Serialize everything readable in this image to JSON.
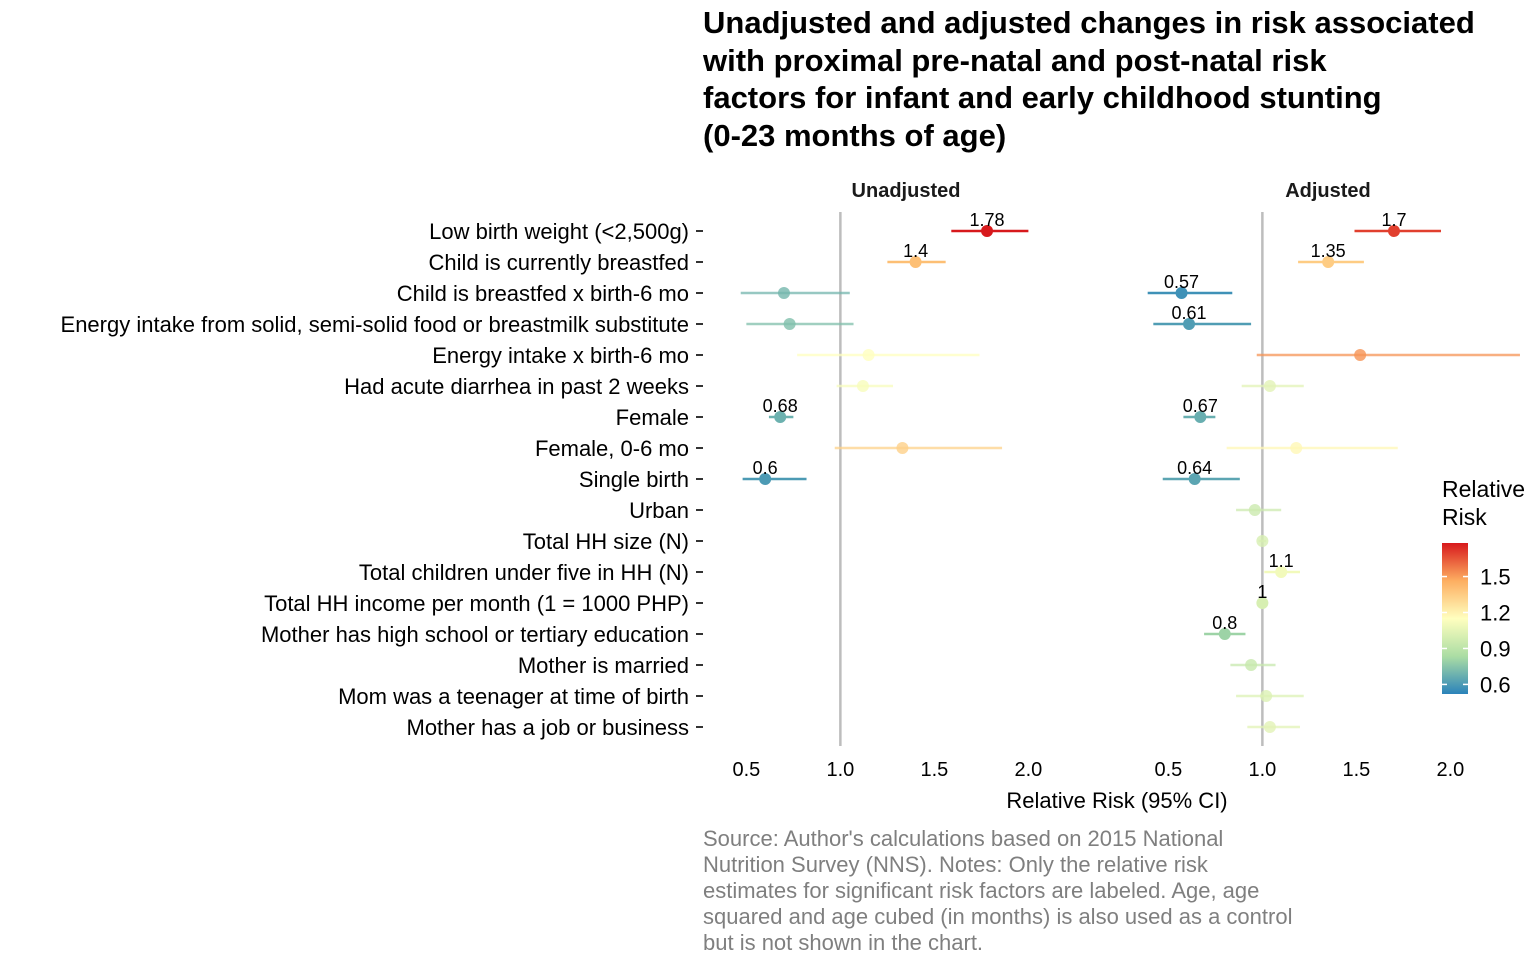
{
  "chart_data": {
    "type": "scatter",
    "subtype": "dot-and-whisker forest plot",
    "title_lines": [
      "Unadjusted and adjusted changes in risk associated",
      "with proximal pre-natal and post-natal risk",
      "factors for infant and early childhood stunting",
      "(0-23 months of age)"
    ],
    "xlabel": "Relative Risk (95% CI)",
    "ylabel": "",
    "xlim": [
      0.28,
      2.45
    ],
    "x_ticks": [
      0.5,
      1.0,
      1.5,
      2.0
    ],
    "x_tick_labels": [
      "0.5",
      "1.0",
      "1.5",
      "2.0"
    ],
    "reference_line": 1.0,
    "grid": false,
    "color_scale": "Spectral (red = high, blue = low)",
    "legend": {
      "title_lines": [
        "Relative",
        "Risk"
      ],
      "position": "right",
      "range": [
        0.52,
        1.78
      ],
      "ticks": [
        0.6,
        0.9,
        1.2,
        1.5
      ],
      "tick_labels": [
        "0.6",
        "0.9",
        "1.2",
        "1.5"
      ]
    },
    "categories": [
      "Low birth weight (<2,500g)",
      "Child is currently breastfed",
      "Child is breastfed x birth-6 mo",
      "Energy intake from solid, semi-solid food or breastmilk substitute",
      "Energy intake x birth-6 mo",
      "Had acute diarrhea in past 2 weeks",
      "Female",
      "Female, 0-6 mo",
      "Single birth",
      "Urban",
      "Total HH size (N)",
      "Total children under five in HH (N)",
      "Total HH income per month (1 = 1000 PHP)",
      "Mother has high school or tertiary education",
      "Mother is married",
      "Mom was a teenager at time of birth",
      "Mother has a job or business"
    ],
    "panels": [
      {
        "name": "Unadjusted",
        "points": [
          {
            "row": 0,
            "rr": 1.78,
            "lo": 1.59,
            "hi": 2.0,
            "label": "1.78"
          },
          {
            "row": 1,
            "rr": 1.4,
            "lo": 1.25,
            "hi": 1.56,
            "label": "1.4"
          },
          {
            "row": 2,
            "rr": 0.7,
            "lo": 0.47,
            "hi": 1.05,
            "label": ""
          },
          {
            "row": 3,
            "rr": 0.73,
            "lo": 0.5,
            "hi": 1.07,
            "label": ""
          },
          {
            "row": 4,
            "rr": 1.15,
            "lo": 0.77,
            "hi": 1.74,
            "label": ""
          },
          {
            "row": 5,
            "rr": 1.12,
            "lo": 0.98,
            "hi": 1.28,
            "label": ""
          },
          {
            "row": 6,
            "rr": 0.68,
            "lo": 0.62,
            "hi": 0.75,
            "label": "0.68"
          },
          {
            "row": 7,
            "rr": 1.33,
            "lo": 0.97,
            "hi": 1.86,
            "label": ""
          },
          {
            "row": 8,
            "rr": 0.6,
            "lo": 0.48,
            "hi": 0.82,
            "label": "0.6"
          }
        ]
      },
      {
        "name": "Adjusted",
        "points": [
          {
            "row": 0,
            "rr": 1.7,
            "lo": 1.49,
            "hi": 1.95,
            "label": "1.7"
          },
          {
            "row": 1,
            "rr": 1.35,
            "lo": 1.19,
            "hi": 1.54,
            "label": "1.35"
          },
          {
            "row": 2,
            "rr": 0.57,
            "lo": 0.39,
            "hi": 0.84,
            "label": "0.57"
          },
          {
            "row": 3,
            "rr": 0.61,
            "lo": 0.42,
            "hi": 0.94,
            "label": "0.61"
          },
          {
            "row": 4,
            "rr": 1.52,
            "lo": 0.97,
            "hi": 2.37,
            "label": ""
          },
          {
            "row": 5,
            "rr": 1.04,
            "lo": 0.89,
            "hi": 1.22,
            "label": ""
          },
          {
            "row": 6,
            "rr": 0.67,
            "lo": 0.58,
            "hi": 0.75,
            "label": "0.67"
          },
          {
            "row": 7,
            "rr": 1.18,
            "lo": 0.81,
            "hi": 1.72,
            "label": ""
          },
          {
            "row": 8,
            "rr": 0.64,
            "lo": 0.47,
            "hi": 0.88,
            "label": "0.64"
          },
          {
            "row": 9,
            "rr": 0.96,
            "lo": 0.86,
            "hi": 1.1,
            "label": ""
          },
          {
            "row": 10,
            "rr": 1.0,
            "lo": 0.98,
            "hi": 1.02,
            "label": ""
          },
          {
            "row": 11,
            "rr": 1.1,
            "lo": 1.01,
            "hi": 1.2,
            "label": "1.1"
          },
          {
            "row": 12,
            "rr": 1.0,
            "lo": 0.99,
            "hi": 1.01,
            "label": "1"
          },
          {
            "row": 13,
            "rr": 0.8,
            "lo": 0.69,
            "hi": 0.91,
            "label": "0.8"
          },
          {
            "row": 14,
            "rr": 0.94,
            "lo": 0.83,
            "hi": 1.07,
            "label": ""
          },
          {
            "row": 15,
            "rr": 1.02,
            "lo": 0.86,
            "hi": 1.22,
            "label": ""
          },
          {
            "row": 16,
            "rr": 1.04,
            "lo": 0.92,
            "hi": 1.2,
            "label": ""
          }
        ]
      }
    ],
    "caption_lines": [
      "Source: Author's calculations based on 2015 National",
      "Nutrition Survey (NNS). Notes: Only the relative risk",
      "estimates for significant risk factors are labeled. Age, age",
      "squared and age cubed (in months) is also used as a control",
      "but is not shown in the chart."
    ]
  },
  "colors": {
    "reference_line": "#bdbdbd",
    "caption": "#7f7f7f",
    "spectral_stops": [
      "#2b83ba",
      "#abdda4",
      "#ffffbf",
      "#fdae61",
      "#d7191c"
    ]
  }
}
